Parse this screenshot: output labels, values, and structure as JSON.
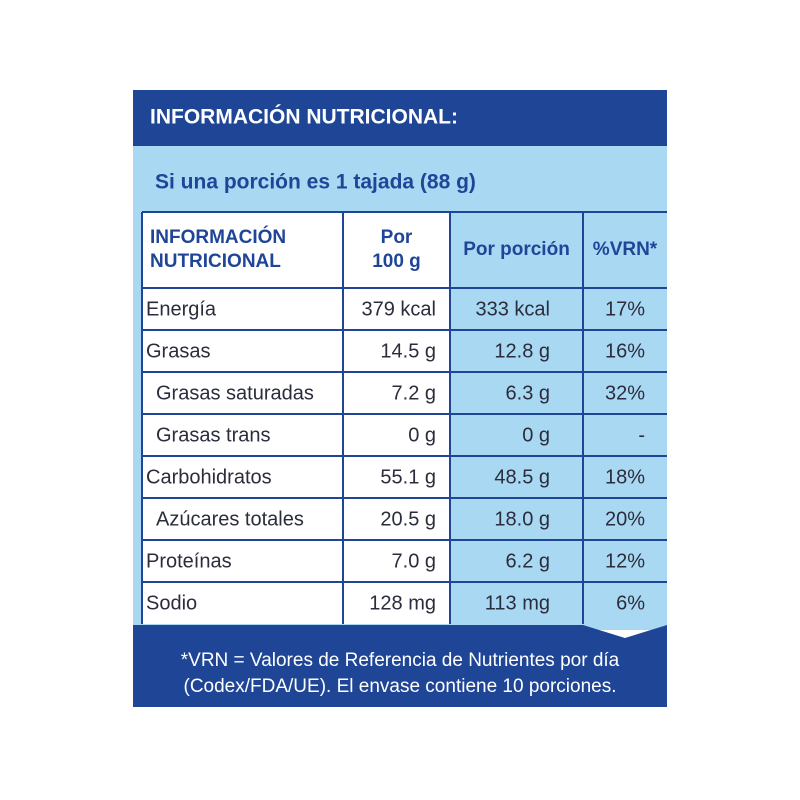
{
  "header": {
    "title": "INFORMACIÓN NUTRICIONAL:"
  },
  "subtitle": "Si una porción es 1 tajada (88 g)",
  "table": {
    "headers": [
      [
        "INFORMACIÓN",
        "NUTRICIONAL"
      ],
      [
        "Por",
        "100 g"
      ],
      [
        "Por porción"
      ],
      [
        "%VRN*"
      ]
    ],
    "rows": [
      [
        "Energía",
        "379 kcal",
        "333 kcal",
        "17%"
      ],
      [
        "Grasas",
        "14.5 g",
        "12.8 g",
        "16%"
      ],
      [
        "Grasas saturadas",
        "7.2 g",
        "6.3 g",
        "32%"
      ],
      [
        "Grasas trans",
        "0 g",
        "0 g",
        "-"
      ],
      [
        "Carbohidratos",
        "55.1 g",
        "48.5 g",
        "18%"
      ],
      [
        "Azúcares totales",
        "20.5 g",
        "18.0 g",
        "20%"
      ],
      [
        "Proteínas",
        "7.0 g",
        "6.2 g",
        "12%"
      ],
      [
        "Sodio",
        "128 mg",
        "113 mg",
        "6%"
      ]
    ]
  },
  "footnote": [
    "*VRN = Valores de Referencia de Nutrientes por día",
    "(Codex/FDA/UE). El envase contiene 10 porciones."
  ]
}
